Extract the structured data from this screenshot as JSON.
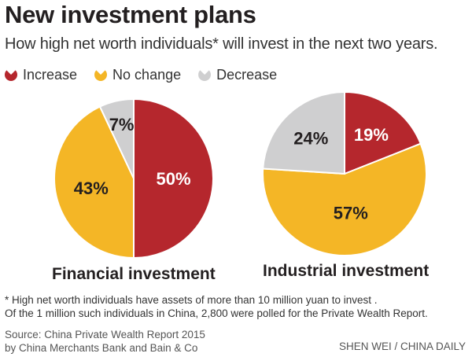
{
  "title": "New investment plans",
  "subtitle": "How high net worth individuals* will invest in the next two years.",
  "colors": {
    "increase": "#b5272d",
    "no_change": "#f4b626",
    "decrease": "#cfcfd0"
  },
  "chart_data": {
    "type": "pie",
    "legend": {
      "position": "top-left",
      "entries": [
        {
          "label": "Increase",
          "color": "#b5272d"
        },
        {
          "label": "No change",
          "color": "#f4b626"
        },
        {
          "label": "Decrease",
          "color": "#cfcfd0"
        }
      ]
    },
    "charts": [
      {
        "label": "Financial investment",
        "slices": [
          {
            "category": "Increase",
            "value": 50,
            "text": "50%"
          },
          {
            "category": "No change",
            "value": 43,
            "text": "43%"
          },
          {
            "category": "Decrease",
            "value": 7,
            "text": "7%"
          }
        ]
      },
      {
        "label": "Industrial investment",
        "slices": [
          {
            "category": "Increase",
            "value": 19,
            "text": "19%"
          },
          {
            "category": "No change",
            "value": 57,
            "text": "57%"
          },
          {
            "category": "Decrease",
            "value": 24,
            "text": "24%"
          }
        ]
      }
    ]
  },
  "footnote": {
    "line1": "* High net worth individuals have assets of more than 10 million yuan to invest .",
    "line2": "Of the 1 million such individuals in China,  2,800 were polled for the Private Wealth Report."
  },
  "source": {
    "line1": "Source: China Private Wealth Report 2015",
    "line2": "by China Merchants Bank and Bain & Co"
  },
  "credit": "SHEN WEI / CHINA DAILY"
}
